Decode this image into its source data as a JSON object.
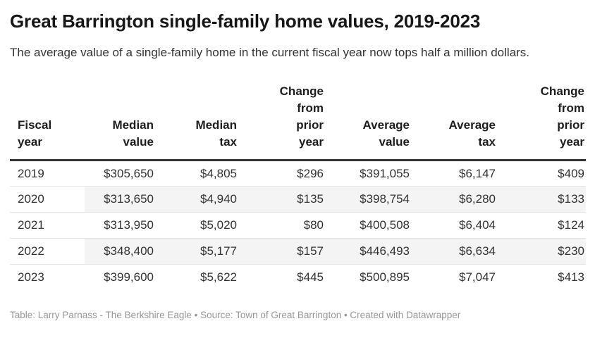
{
  "header": {
    "title": "Great Barrington single-family home values, 2019-2023",
    "subtitle": "The average value of a single-family home in the current fiscal year now tops half a million dollars."
  },
  "table": {
    "columns": [
      {
        "id": "fiscal-year",
        "label": "Fiscal\nyear"
      },
      {
        "id": "median-value",
        "label": "Median\nvalue"
      },
      {
        "id": "median-tax",
        "label": "Median\ntax"
      },
      {
        "id": "change-prior-year-median",
        "label": "Change\nfrom\nprior\nyear"
      },
      {
        "id": "average-value",
        "label": "Average\nvalue"
      },
      {
        "id": "average-tax",
        "label": "Average\ntax"
      },
      {
        "id": "change-prior-year-average",
        "label": "Change\nfrom\nprior\nyear"
      }
    ],
    "rows": [
      [
        "2019",
        "$305,650",
        "$4,805",
        "$296",
        "$391,055",
        "$6,147",
        "$409"
      ],
      [
        "2020",
        "$313,650",
        "$4,940",
        "$135",
        "$398,754",
        "$6,280",
        "$133"
      ],
      [
        "2021",
        "$313,950",
        "$5,020",
        "$80",
        "$400,508",
        "$6,404",
        "$124"
      ],
      [
        "2022",
        "$348,400",
        "$5,177",
        "$157",
        "$446,493",
        "$6,634",
        "$230"
      ],
      [
        "2023",
        "$399,600",
        "$5,622",
        "$445",
        "$500,895",
        "$7,047",
        "$413"
      ]
    ]
  },
  "footer": {
    "credit": "Table: Larry Parnass - The Berkshire Eagle • Source: Town of Great Barrington • Created with Datawrapper"
  },
  "colors": {
    "title_text": "#171717",
    "body_text": "#333333",
    "header_rule": "#333333",
    "row_separator": "#e4e4e4",
    "stripe_background": "#f4f4f4",
    "footer_text": "#979797",
    "page_background": "#ffffff"
  },
  "chart_data": {
    "type": "table",
    "title": "Great Barrington single-family home values, 2019-2023",
    "subtitle": "The average value of a single-family home in the current fiscal year now tops half a million dollars.",
    "columns": [
      "Fiscal year",
      "Median value",
      "Median tax",
      "Change from prior year",
      "Average value",
      "Average tax",
      "Change from prior year"
    ],
    "rows": [
      [
        "2019",
        "$305,650",
        "$4,805",
        "$296",
        "$391,055",
        "$6,147",
        "$409"
      ],
      [
        "2020",
        "$313,650",
        "$4,940",
        "$135",
        "$398,754",
        "$6,280",
        "$133"
      ],
      [
        "2021",
        "$313,950",
        "$5,020",
        "$80",
        "$400,508",
        "$6,404",
        "$124"
      ],
      [
        "2022",
        "$348,400",
        "$5,177",
        "$157",
        "$446,493",
        "$6,634",
        "$230"
      ],
      [
        "2023",
        "$399,600",
        "$5,622",
        "$445",
        "$500,895",
        "$7,047",
        "$413"
      ]
    ],
    "notes": {
      "striped_rows": [
        "2020",
        "2022"
      ],
      "footer_credit": "Table: Larry Parnass - The Berkshire Eagle • Source: Town of Great Barrington • Created with Datawrapper"
    }
  }
}
